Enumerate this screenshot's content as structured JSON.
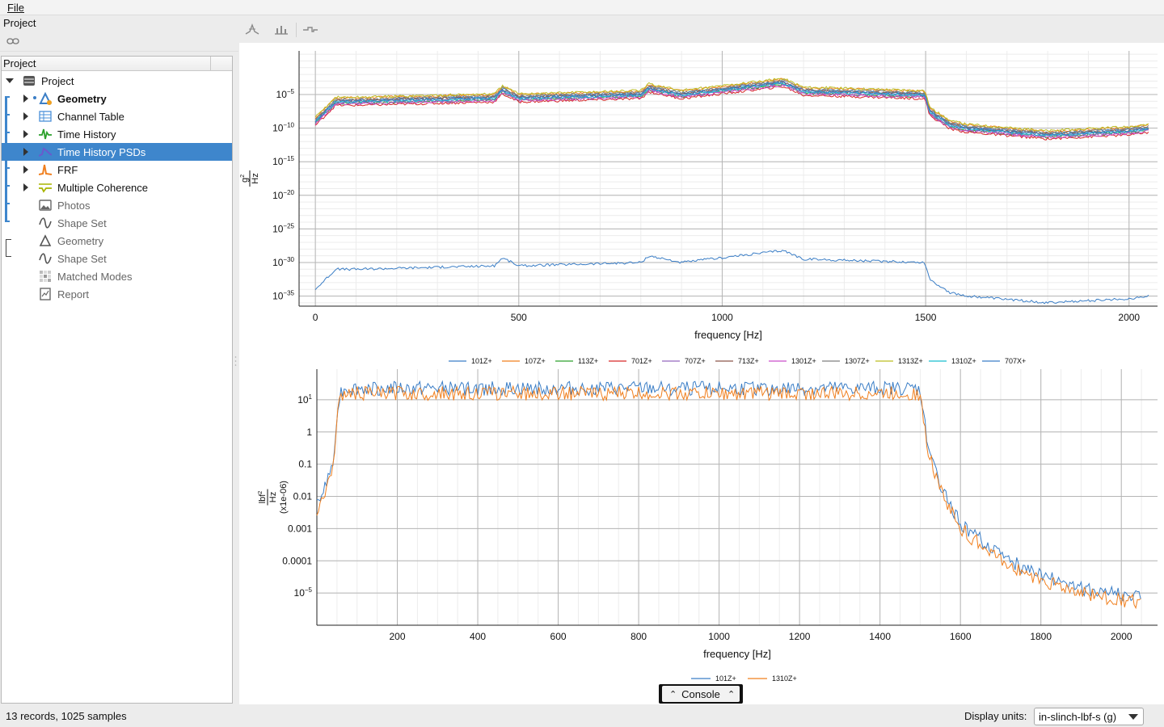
{
  "menu": {
    "file": "File"
  },
  "project_panel": {
    "title": "Project",
    "tree_header": "Project"
  },
  "tree": [
    {
      "label": "Project",
      "icon": "database-icon",
      "expanded": true,
      "bold": false,
      "dim": false
    },
    {
      "label": "Geometry",
      "icon": "geometry-icon",
      "bold": true,
      "dim": false
    },
    {
      "label": "Channel Table",
      "icon": "table-icon",
      "bold": false,
      "dim": false
    },
    {
      "label": "Time History",
      "icon": "time-history-icon",
      "bold": false,
      "dim": false
    },
    {
      "label": "Time History PSDs",
      "icon": "psd-icon",
      "bold": false,
      "dim": false,
      "selected": true
    },
    {
      "label": "FRF",
      "icon": "frf-icon",
      "bold": false,
      "dim": false
    },
    {
      "label": "Multiple Coherence",
      "icon": "coherence-icon",
      "bold": false,
      "dim": false
    },
    {
      "label": "Photos",
      "icon": "photo-icon",
      "bold": false,
      "dim": true
    },
    {
      "label": "Shape Set",
      "icon": "shape-set-icon",
      "bold": false,
      "dim": true
    },
    {
      "label": "Geometry",
      "icon": "geometry-outline-icon",
      "bold": false,
      "dim": true
    },
    {
      "label": "Shape Set",
      "icon": "shape-set-icon",
      "bold": false,
      "dim": true
    },
    {
      "label": "Matched Modes",
      "icon": "matched-modes-icon",
      "bold": false,
      "dim": true
    },
    {
      "label": "Report",
      "icon": "report-icon",
      "bold": false,
      "dim": true
    }
  ],
  "toolbar": {
    "icons": [
      "peak-pick-icon",
      "bar-chart-icon",
      "step-icon"
    ]
  },
  "chart_data": [
    {
      "type": "line",
      "log_y": true,
      "xlabel": "frequency [Hz]",
      "ylabel_num": "g",
      "ylabel_exp": "2",
      "ylabel_den": "Hz",
      "xlim": [
        -40,
        2070
      ],
      "ylim": [
        -36.5,
        1.5
      ],
      "x_ticks": [
        0,
        500,
        1000,
        1500,
        2000
      ],
      "x_tick_labels": [
        "0",
        "500",
        "1000",
        "1500",
        "2000"
      ],
      "y_ticks": [
        {
          "exp": -5,
          "base": "10",
          "sup": "−5"
        },
        {
          "exp": -10,
          "base": "10",
          "sup": "−10"
        },
        {
          "exp": -15,
          "base": "10",
          "sup": "−15"
        },
        {
          "exp": -20,
          "base": "10",
          "sup": "−20"
        },
        {
          "exp": -25,
          "base": "10",
          "sup": "−25"
        },
        {
          "exp": -30,
          "base": "10",
          "sup": "−30"
        },
        {
          "exp": -35,
          "base": "10",
          "sup": "−35"
        }
      ],
      "shape_x": [
        0,
        50,
        100,
        440,
        460,
        500,
        800,
        820,
        900,
        1150,
        1200,
        1498,
        1510,
        1560,
        1600,
        1700,
        1800,
        2000,
        2050
      ],
      "shape_y": [
        -9,
        -6,
        -6,
        -5.5,
        -4.3,
        -5.5,
        -5.0,
        -4.0,
        -5.0,
        -3.2,
        -4.5,
        -5.0,
        -7.5,
        -9.5,
        -10.0,
        -10.5,
        -11.0,
        -10.4,
        -10.0
      ],
      "series": [
        {
          "name": "101Z+",
          "color": "#3b7ec6",
          "offset": 0.2
        },
        {
          "name": "107Z+",
          "color": "#f07f1e",
          "offset": 0.5
        },
        {
          "name": "113Z+",
          "color": "#2ca02c",
          "offset": -0.3
        },
        {
          "name": "701Z+",
          "color": "#d62728",
          "offset": -0.6
        },
        {
          "name": "707Z+",
          "color": "#9467bd",
          "offset": -0.2
        },
        {
          "name": "713Z+",
          "color": "#8c564b",
          "offset": 0.1
        },
        {
          "name": "1301Z+",
          "color": "#c94dc9",
          "offset": -0.4
        },
        {
          "name": "1307Z+",
          "color": "#7f7f7f",
          "offset": 0.3
        },
        {
          "name": "1313Z+",
          "color": "#bcbd22",
          "offset": 0.6
        },
        {
          "name": "1310Z+",
          "color": "#17becf",
          "offset": -0.1
        },
        {
          "name": "707X+",
          "color": "#3b7ec6",
          "offset": 0.0
        }
      ],
      "extra_series": {
        "name": "",
        "color": "#3b7ec6",
        "offset": -25.0
      }
    },
    {
      "type": "line",
      "log_y": true,
      "xlabel": "frequency [Hz]",
      "ylabel_num": "lbf",
      "ylabel_exp": "2",
      "ylabel_den": "Hz",
      "ylabel_scale": "(x1e-06)",
      "xlim": [
        0,
        2090
      ],
      "ylim": [
        -6.0,
        1.95
      ],
      "x_ticks": [
        200,
        400,
        600,
        800,
        1000,
        1200,
        1400,
        1600,
        1800,
        2000
      ],
      "x_tick_labels": [
        "200",
        "400",
        "600",
        "800",
        "1000",
        "1200",
        "1400",
        "1600",
        "1800",
        "2000"
      ],
      "y_ticks": [
        {
          "exp": 1,
          "base": "10",
          "sup": "1"
        },
        {
          "exp": 0,
          "base": "1",
          "sup": ""
        },
        {
          "exp": -1,
          "base": "0.1",
          "sup": ""
        },
        {
          "exp": -2,
          "base": "0.01",
          "sup": ""
        },
        {
          "exp": -3,
          "base": "0.001",
          "sup": ""
        },
        {
          "exp": -4,
          "base": "0.0001",
          "sup": ""
        },
        {
          "exp": -5,
          "base": "10",
          "sup": "−5"
        }
      ],
      "shape_x": [
        0,
        20,
        40,
        50,
        60,
        70,
        1490,
        1500,
        1520,
        1560,
        1600,
        1650,
        1700,
        1800,
        1900,
        2000,
        2050
      ],
      "shape_y": [
        -2.3,
        -1.8,
        -1.0,
        0.6,
        1.2,
        1.3,
        1.3,
        1.2,
        -0.5,
        -2.0,
        -2.9,
        -3.4,
        -3.9,
        -4.5,
        -4.9,
        -5.1,
        -5.2
      ],
      "series": [
        {
          "name": "101Z+",
          "color": "#3b7ec6",
          "offset": 0.05
        },
        {
          "name": "1310Z+",
          "color": "#f07f1e",
          "offset": -0.1
        }
      ]
    }
  ],
  "console": {
    "label": "Console"
  },
  "status": {
    "text": "13 records, 1025 samples",
    "units_label": "Display units:",
    "units_value": "in-slinch-lbf-s (g)"
  }
}
